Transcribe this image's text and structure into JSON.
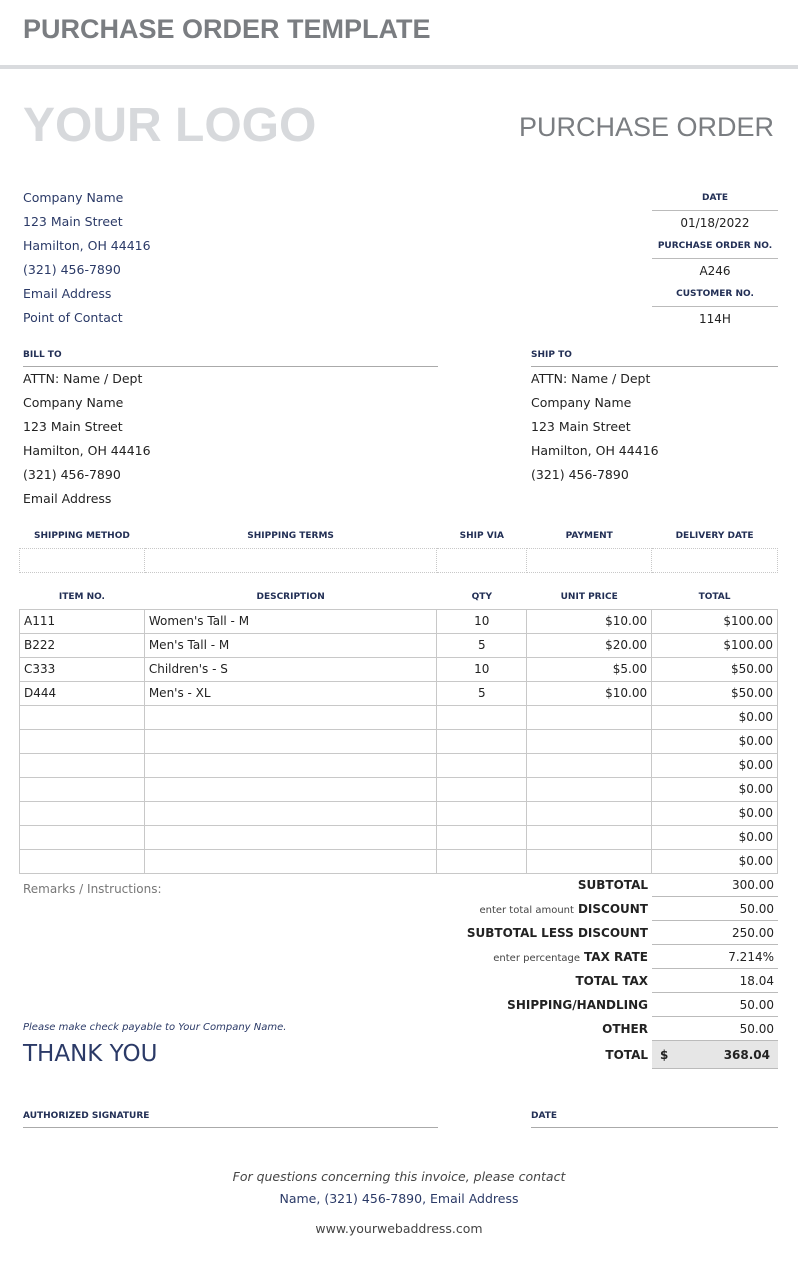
{
  "page_title": "PURCHASE ORDER TEMPLATE",
  "logo": "YOUR LOGO",
  "doc_title": "PURCHASE ORDER",
  "company": [
    "Company Name",
    "123 Main Street",
    "Hamilton, OH 44416",
    "(321) 456-7890",
    "Email Address",
    "Point of Contact"
  ],
  "meta": {
    "date_label": "DATE",
    "date": "01/18/2022",
    "po_label": "PURCHASE ORDER NO.",
    "po": "A246",
    "cust_label": "CUSTOMER NO.",
    "cust": "114H"
  },
  "bill_to": {
    "label": "BILL TO",
    "lines": [
      "ATTN: Name / Dept",
      "Company Name",
      "123 Main Street",
      "Hamilton, OH 44416",
      "(321) 456-7890",
      "Email Address"
    ]
  },
  "ship_to": {
    "label": "SHIP TO",
    "lines": [
      "ATTN: Name / Dept",
      "Company Name",
      "123 Main Street",
      "Hamilton, OH 44416",
      "(321) 456-7890"
    ]
  },
  "shipping_headers": [
    "SHIPPING METHOD",
    "SHIPPING TERMS",
    "SHIP VIA",
    "PAYMENT",
    "DELIVERY DATE"
  ],
  "item_headers": [
    "ITEM NO.",
    "DESCRIPTION",
    "QTY",
    "UNIT PRICE",
    "TOTAL"
  ],
  "items": [
    [
      "A111",
      "Women's Tall - M",
      "10",
      "$10.00",
      "$100.00"
    ],
    [
      "B222",
      "Men's Tall - M",
      "5",
      "$20.00",
      "$100.00"
    ],
    [
      "C333",
      "Children's - S",
      "10",
      "$5.00",
      "$50.00"
    ],
    [
      "D444",
      "Men's - XL",
      "5",
      "$10.00",
      "$50.00"
    ],
    [
      "",
      "",
      "",
      "",
      "$0.00"
    ],
    [
      "",
      "",
      "",
      "",
      "$0.00"
    ],
    [
      "",
      "",
      "",
      "",
      "$0.00"
    ],
    [
      "",
      "",
      "",
      "",
      "$0.00"
    ],
    [
      "",
      "",
      "",
      "",
      "$0.00"
    ],
    [
      "",
      "",
      "",
      "",
      "$0.00"
    ],
    [
      "",
      "",
      "",
      "",
      "$0.00"
    ]
  ],
  "remarks_label": "Remarks / Instructions:",
  "totals": [
    {
      "hint": "",
      "label": "SUBTOTAL",
      "value": "300.00"
    },
    {
      "hint": "enter total amount",
      "label": "DISCOUNT",
      "value": "50.00"
    },
    {
      "hint": "",
      "label": "SUBTOTAL LESS DISCOUNT",
      "value": "250.00"
    },
    {
      "hint": "enter percentage",
      "label": "TAX RATE",
      "value": "7.214%"
    },
    {
      "hint": "",
      "label": "TOTAL TAX",
      "value": "18.04"
    },
    {
      "hint": "",
      "label": "SHIPPING/HANDLING",
      "value": "50.00"
    },
    {
      "hint": "",
      "label": "OTHER",
      "value": "50.00"
    }
  ],
  "grand_total": {
    "label": "TOTAL",
    "currency": "$",
    "value": "368.04"
  },
  "check_note": "Please make check payable to Your Company Name.",
  "thank_you": "THANK YOU",
  "signature_label": "AUTHORIZED SIGNATURE",
  "sig_date_label": "DATE",
  "footer": {
    "line1": "For questions concerning this invoice, please contact",
    "line2": "Name, (321) 456-7890, Email Address",
    "web": "www.yourwebaddress.com"
  }
}
